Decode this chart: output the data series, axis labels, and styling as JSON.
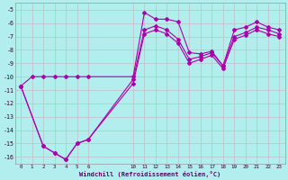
{
  "xlabel": "Windchill (Refroidissement éolien,°C)",
  "bg_color": "#b2eeee",
  "grid_color": "#c0c0c0",
  "line_color": "#aa00aa",
  "xlim": [
    -0.5,
    23.5
  ],
  "ylim": [
    -16.5,
    -4.5
  ],
  "xtick_labels": [
    "0",
    "1",
    "2",
    "3",
    "4",
    "5",
    "6",
    "10",
    "11",
    "12",
    "13",
    "14",
    "15",
    "16",
    "17",
    "18",
    "19",
    "20",
    "21",
    "22",
    "23"
  ],
  "xtick_pos": [
    0,
    1,
    2,
    3,
    4,
    5,
    6,
    10,
    11,
    12,
    13,
    14,
    15,
    16,
    17,
    18,
    19,
    20,
    21,
    22,
    23
  ],
  "yticks": [
    -5,
    -6,
    -7,
    -8,
    -9,
    -10,
    -11,
    -12,
    -13,
    -14,
    -15,
    -16
  ],
  "line1_x": [
    0,
    1,
    2,
    3,
    4,
    5,
    6,
    10,
    11,
    12,
    13,
    14,
    15,
    16,
    17,
    18,
    19,
    20,
    21,
    22,
    23
  ],
  "line1_y": [
    -10.7,
    -10.0,
    -10.0,
    -10.0,
    -10.0,
    -10.0,
    -10.0,
    -10.0,
    -5.2,
    -5.7,
    -5.7,
    -5.9,
    -8.2,
    -8.3,
    -8.1,
    -9.2,
    -6.5,
    -6.3,
    -5.9,
    -6.3,
    -6.5
  ],
  "line2_x": [
    0,
    2,
    3,
    4,
    5,
    6,
    10,
    11,
    12,
    13,
    14,
    15,
    16,
    17,
    18,
    19,
    20,
    21,
    22,
    23
  ],
  "line2_y": [
    -10.7,
    -15.2,
    -15.7,
    -16.2,
    -15.0,
    -14.7,
    -10.5,
    -6.8,
    -6.5,
    -6.8,
    -7.5,
    -9.0,
    -8.7,
    -8.4,
    -9.4,
    -7.2,
    -6.9,
    -6.5,
    -6.8,
    -7.0
  ],
  "line3_x": [
    0,
    2,
    3,
    4,
    5,
    6,
    10,
    11,
    12,
    13,
    14,
    15,
    16,
    17,
    18,
    19,
    20,
    21,
    22,
    23
  ],
  "line3_y": [
    -10.7,
    -15.2,
    -15.7,
    -16.2,
    -15.0,
    -14.7,
    -10.2,
    -6.5,
    -6.2,
    -6.5,
    -7.2,
    -8.7,
    -8.5,
    -8.2,
    -9.2,
    -7.0,
    -6.7,
    -6.3,
    -6.5,
    -6.8
  ]
}
